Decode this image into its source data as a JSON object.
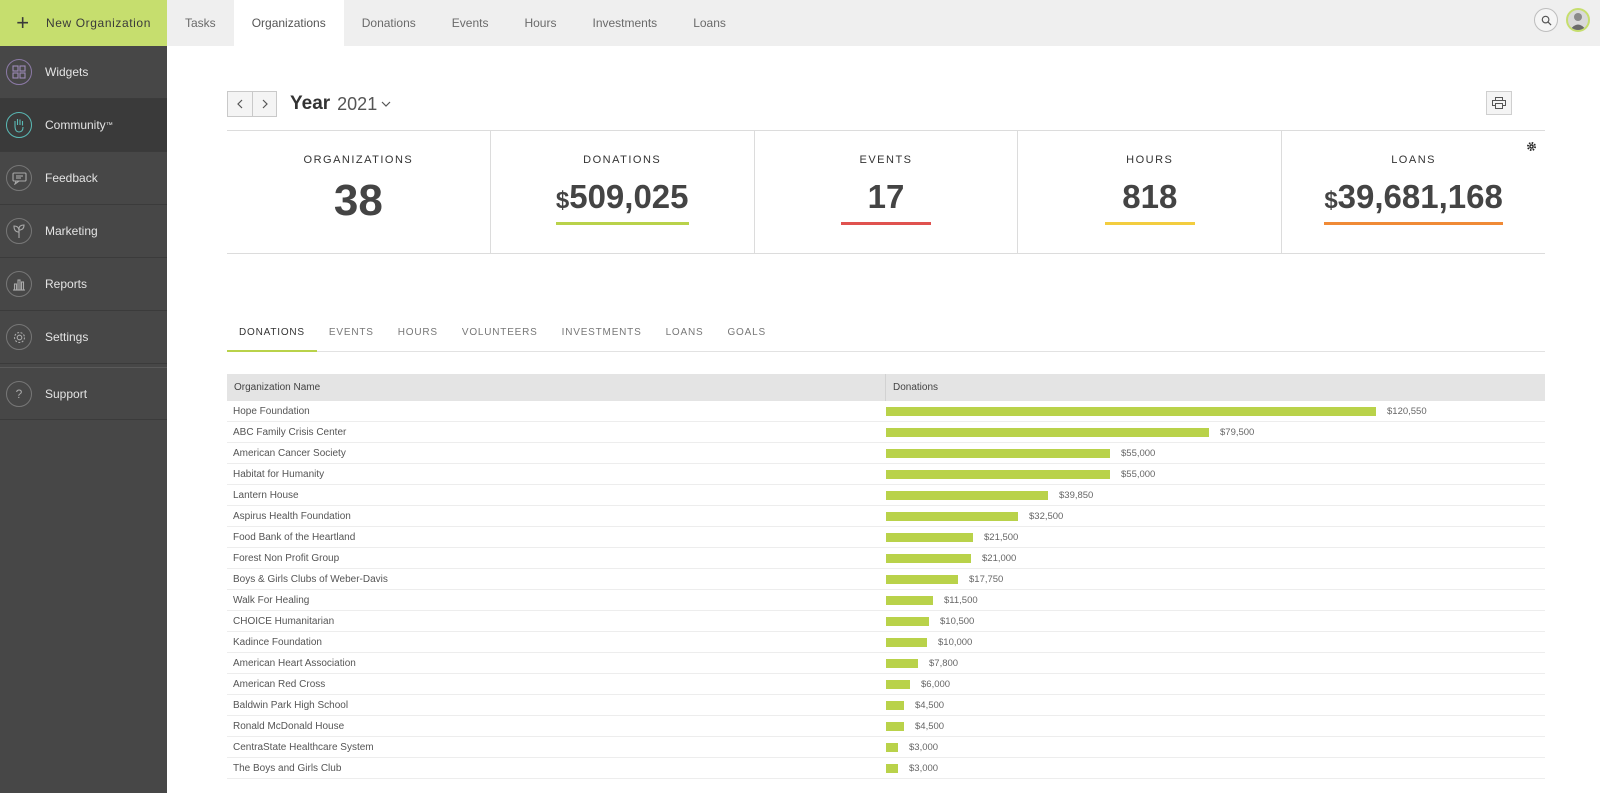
{
  "topbar": {
    "new_org_label": "New Organization",
    "tabs": [
      "Tasks",
      "Organizations",
      "Donations",
      "Events",
      "Hours",
      "Investments",
      "Loans"
    ],
    "active_tab": "Organizations"
  },
  "sidebar": {
    "items": [
      {
        "label": "Widgets",
        "icon": "widgets-icon"
      },
      {
        "label": "Community",
        "icon": "hand-icon",
        "trademark": "™"
      },
      {
        "label": "Feedback",
        "icon": "feedback-icon"
      },
      {
        "label": "Marketing",
        "icon": "plant-icon"
      },
      {
        "label": "Reports",
        "icon": "bar-chart-icon"
      },
      {
        "label": "Settings",
        "icon": "gear-icon"
      },
      {
        "label": "Support",
        "icon": "help-icon"
      }
    ],
    "active": "Community"
  },
  "period": {
    "label": "Year",
    "value": "2021"
  },
  "stats": [
    {
      "label": "ORGANIZATIONS",
      "value": "38",
      "currency": "",
      "accent": ""
    },
    {
      "label": "DONATIONS",
      "value": "509,025",
      "currency": "$",
      "accent": "#b9d24a"
    },
    {
      "label": "EVENTS",
      "value": "17",
      "currency": "",
      "accent": "#e0524f"
    },
    {
      "label": "HOURS",
      "value": "818",
      "currency": "",
      "accent": "#f3cd3f"
    },
    {
      "label": "LOANS",
      "value": "39,681,168",
      "currency": "$",
      "accent": "#f08a36"
    }
  ],
  "subtabs": [
    "DONATIONS",
    "EVENTS",
    "HOURS",
    "VOLUNTEERS",
    "INVESTMENTS",
    "LOANS",
    "GOALS"
  ],
  "active_subtab": "DONATIONS",
  "table": {
    "headers": [
      "Organization Name",
      "Donations"
    ],
    "max_value": 120550,
    "rows": [
      {
        "name": "Hope Foundation",
        "value": 120550,
        "label": "$120,550"
      },
      {
        "name": "ABC Family Crisis Center",
        "value": 79500,
        "label": "$79,500"
      },
      {
        "name": "American Cancer Society",
        "value": 55000,
        "label": "$55,000"
      },
      {
        "name": "Habitat for Humanity",
        "value": 55000,
        "label": "$55,000"
      },
      {
        "name": "Lantern House",
        "value": 39850,
        "label": "$39,850"
      },
      {
        "name": "Aspirus Health Foundation",
        "value": 32500,
        "label": "$32,500"
      },
      {
        "name": "Food Bank of the Heartland",
        "value": 21500,
        "label": "$21,500"
      },
      {
        "name": "Forest Non Profit Group",
        "value": 21000,
        "label": "$21,000"
      },
      {
        "name": "Boys & Girls Clubs of Weber-Davis",
        "value": 17750,
        "label": "$17,750"
      },
      {
        "name": "Walk For Healing",
        "value": 11500,
        "label": "$11,500"
      },
      {
        "name": "CHOICE Humanitarian",
        "value": 10500,
        "label": "$10,500"
      },
      {
        "name": "Kadince Foundation",
        "value": 10000,
        "label": "$10,000"
      },
      {
        "name": "American Heart Association",
        "value": 7800,
        "label": "$7,800"
      },
      {
        "name": "American Red Cross",
        "value": 6000,
        "label": "$6,000"
      },
      {
        "name": "Baldwin Park High School",
        "value": 4500,
        "label": "$4,500"
      },
      {
        "name": "Ronald McDonald House",
        "value": 4500,
        "label": "$4,500"
      },
      {
        "name": "CentraState Healthcare System",
        "value": 3000,
        "label": "$3,000"
      },
      {
        "name": "The Boys and Girls Club",
        "value": 3000,
        "label": "$3,000"
      }
    ]
  }
}
